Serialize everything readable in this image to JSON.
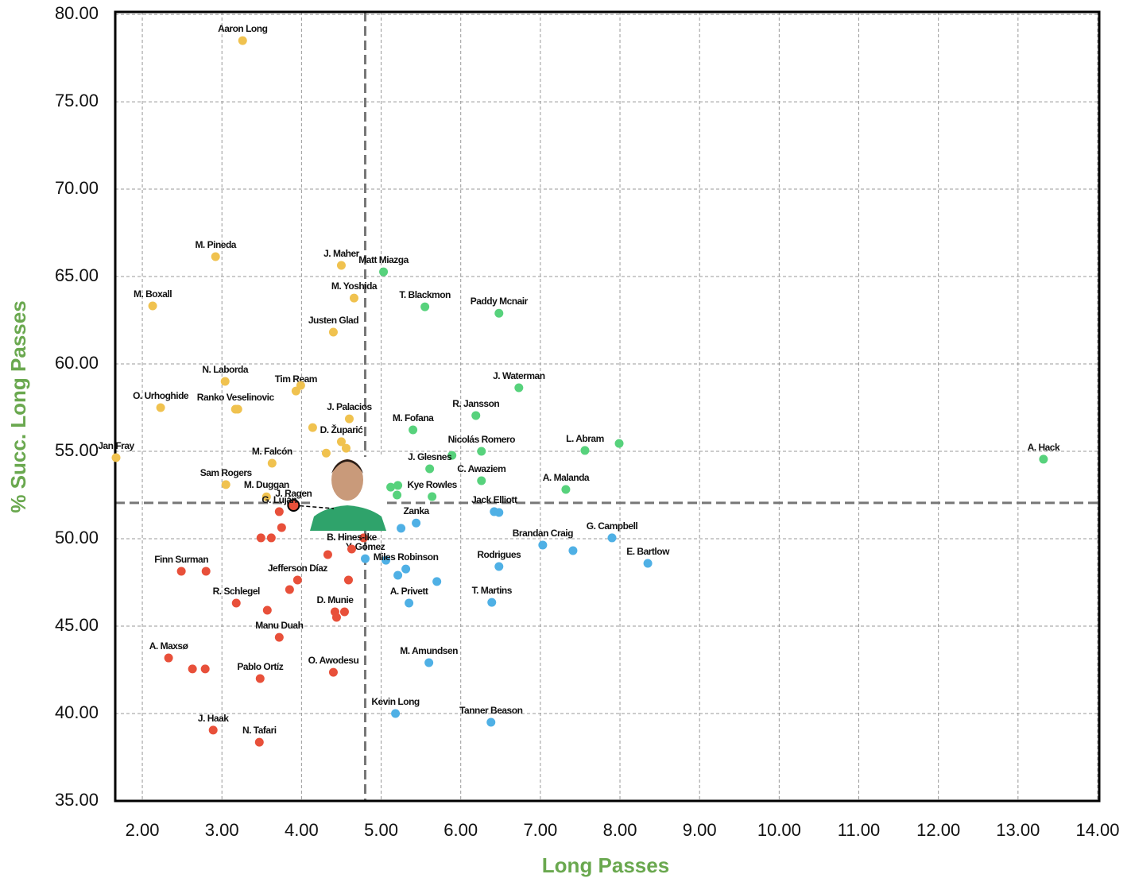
{
  "chart_data": {
    "type": "scatter",
    "x_label": "Long Passes",
    "y_label": "% Succ. Long Passes",
    "xlim": [
      1.66,
      14.02
    ],
    "ylim": [
      35,
      80.14
    ],
    "xticks": [
      {
        "value": 2,
        "label": "2.00"
      },
      {
        "value": 3,
        "label": "3.00"
      },
      {
        "value": 4,
        "label": "4.00"
      },
      {
        "value": 5,
        "label": "5.00"
      },
      {
        "value": 6,
        "label": "6.00"
      },
      {
        "value": 7,
        "label": "7.00"
      },
      {
        "value": 8,
        "label": "8.00"
      },
      {
        "value": 9,
        "label": "9.00"
      },
      {
        "value": 10,
        "label": "10.00"
      },
      {
        "value": 11,
        "label": "11.00"
      },
      {
        "value": 12,
        "label": "12.00"
      },
      {
        "value": 13,
        "label": "13.00"
      },
      {
        "value": 14,
        "label": "14.00"
      }
    ],
    "yticks": [
      {
        "value": 35,
        "label": "35.00"
      },
      {
        "value": 40,
        "label": "40.00"
      },
      {
        "value": 45,
        "label": "45.00"
      },
      {
        "value": 50,
        "label": "50.00"
      },
      {
        "value": 55,
        "label": "55.00"
      },
      {
        "value": 60,
        "label": "60.00"
      },
      {
        "value": 65,
        "label": "65.00"
      },
      {
        "value": 70,
        "label": "70.00"
      },
      {
        "value": 75,
        "label": "75.00"
      },
      {
        "value": 80,
        "label": "80.00"
      }
    ],
    "grid": true,
    "vlines": [
      4.8
    ],
    "hlines": [
      52.05
    ],
    "highlight": [
      3,
      0
    ],
    "series": [
      {
        "color": "#f0c24f",
        "x": [
          3.26,
          2.92,
          2.13,
          4.5,
          4.66,
          4.4,
          3.04,
          3.93,
          3.99,
          2.23,
          3.17,
          3.2,
          4.6,
          4.14,
          4.5,
          4.56,
          1.67,
          3.63,
          4.31,
          3.05,
          3.56
        ],
        "values": [
          78.5,
          66.14,
          63.32,
          65.64,
          63.77,
          61.82,
          59.0,
          58.45,
          58.77,
          57.5,
          57.41,
          57.41,
          56.86,
          56.36,
          55.55,
          55.18,
          54.64,
          54.32,
          54.9,
          53.1,
          52.4
        ],
        "labels": [
          "Aaron Long",
          "M. Pineda",
          "M. Boxall",
          "J. Maher",
          "M. Yoshida",
          "Justen Glad",
          "N. Laborda",
          "Tim Ream",
          null,
          "O. Urhoghide",
          "Ranko Veselinovic",
          null,
          "J. Palacios",
          null,
          "D. Župarić",
          null,
          "Jan Fray",
          "M. Falcón",
          null,
          "Sam Rogers",
          "M. Duggan"
        ]
      },
      {
        "color": "#57d27c",
        "x": [
          5.03,
          5.55,
          6.48,
          6.73,
          6.19,
          5.4,
          7.56,
          7.99,
          6.26,
          5.89,
          5.61,
          6.26,
          7.32,
          5.64,
          5.12,
          5.21,
          5.2,
          13.32
        ],
        "values": [
          65.27,
          63.27,
          62.9,
          58.64,
          57.05,
          56.23,
          55.05,
          55.45,
          55.0,
          54.77,
          54.0,
          53.32,
          52.82,
          52.41,
          52.95,
          53.05,
          52.5,
          54.55
        ],
        "labels": [
          "Matt Miazga",
          "T. Blackmon",
          "Paddy Mcnair",
          "J. Waterman",
          "R. Jansson",
          "M. Fofana",
          "L. Abram",
          null,
          "Nicolás Romero",
          null,
          "J. Glesnes",
          "C. Awaziem",
          "A. Malanda",
          "Kye Rowles",
          null,
          null,
          null,
          "A. Hack"
        ]
      },
      {
        "color": "#4fb0e5",
        "x": [
          6.42,
          6.48,
          5.44,
          5.25,
          7.03,
          7.9,
          7.41,
          8.35,
          6.48,
          4.8,
          5.06,
          5.31,
          5.21,
          5.7,
          5.35,
          6.39,
          5.6,
          5.18,
          6.38
        ],
        "values": [
          51.55,
          51.5,
          50.9,
          50.6,
          49.64,
          50.05,
          49.32,
          48.59,
          48.41,
          48.86,
          48.77,
          48.27,
          47.91,
          47.55,
          46.32,
          46.36,
          42.91,
          40.0,
          39.5
        ],
        "labels": [
          "Jack Elliott",
          null,
          "Zanka",
          null,
          "Brandan Craig",
          "G. Campbell",
          null,
          "E. Bartlow",
          "Rodrigues",
          "Y. Gómez",
          null,
          "Miles Robinson",
          null,
          null,
          "A. Privett",
          "T. Martins",
          "M. Amundsen",
          "Kevin Long",
          "Tanner Beason"
        ]
      },
      {
        "color": "#e8503a",
        "x": [
          3.9,
          3.72,
          3.75,
          3.49,
          3.62,
          4.78,
          4.63,
          4.33,
          2.49,
          2.8,
          3.95,
          4.59,
          3.85,
          3.18,
          3.57,
          4.42,
          4.54,
          4.44,
          3.72,
          2.33,
          2.63,
          2.79,
          3.48,
          4.4,
          2.89,
          3.47
        ],
        "values": [
          51.91,
          51.55,
          50.64,
          50.05,
          50.05,
          50.05,
          49.41,
          49.09,
          48.14,
          48.14,
          47.64,
          47.64,
          47.09,
          46.32,
          45.91,
          45.82,
          45.82,
          45.5,
          44.36,
          43.18,
          42.55,
          42.55,
          42.0,
          42.36,
          39.05,
          38.36
        ],
        "labels": [
          "J. Ragen",
          "G. Luján",
          null,
          null,
          null,
          null,
          "B. Hines-Ike",
          null,
          "Finn Surman",
          null,
          "Jefferson Díaz",
          null,
          null,
          "R. Schlegel",
          null,
          "D. Munie",
          null,
          null,
          "Manu Duah",
          "A. Maxsø",
          null,
          null,
          "Pablo Ortíz",
          "O. Awodesu",
          "J. Haak",
          "N. Tafari"
        ]
      }
    ]
  }
}
